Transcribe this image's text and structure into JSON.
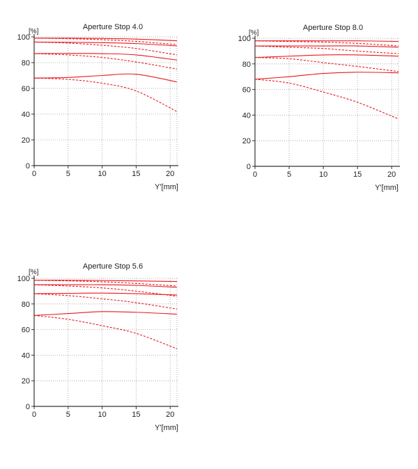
{
  "colors": {
    "curve": "#e8181e",
    "grid": "#9a9a9a",
    "axis": "#333333"
  },
  "chart_data": [
    {
      "type": "line",
      "title": "Aperture Stop 4.0",
      "ylabel": "[%]",
      "xlabel": "Y'[mm]",
      "xlim": [
        0,
        21
      ],
      "ylim": [
        0,
        100
      ],
      "xticks": [
        "0",
        "5",
        "10",
        "15",
        "20"
      ],
      "yticks": [
        "0",
        "20",
        "40",
        "60",
        "80",
        "100"
      ],
      "grid": true,
      "series": [
        {
          "style": "solid",
          "x": [
            0,
            5,
            10,
            15,
            21
          ],
          "y": [
            99,
            99,
            98.8,
            98.3,
            97
          ]
        },
        {
          "style": "dashed",
          "x": [
            0,
            5,
            10,
            15,
            21
          ],
          "y": [
            99,
            98.6,
            97.8,
            96.5,
            94
          ]
        },
        {
          "style": "solid",
          "x": [
            0,
            5,
            10,
            15,
            21
          ],
          "y": [
            96,
            95.8,
            95.5,
            94.8,
            93
          ]
        },
        {
          "style": "dashed",
          "x": [
            0,
            5,
            10,
            15,
            21
          ],
          "y": [
            96,
            95.2,
            93.5,
            91,
            86
          ]
        },
        {
          "style": "solid",
          "x": [
            0,
            5,
            10,
            15,
            21
          ],
          "y": [
            87,
            87.2,
            87,
            86,
            82
          ]
        },
        {
          "style": "dashed",
          "x": [
            0,
            5,
            10,
            15,
            21
          ],
          "y": [
            87,
            86,
            84,
            80.5,
            75
          ]
        },
        {
          "style": "solid",
          "x": [
            0,
            5,
            10,
            15,
            21
          ],
          "y": [
            68,
            68.5,
            70,
            71,
            65
          ]
        },
        {
          "style": "dashed",
          "x": [
            0,
            5,
            10,
            15,
            21
          ],
          "y": [
            68,
            67,
            64,
            58,
            42
          ]
        }
      ]
    },
    {
      "type": "line",
      "title": "Aperture Stop 8.0",
      "ylabel": "[%]",
      "xlabel": "Y'[mm]",
      "xlim": [
        0,
        21
      ],
      "ylim": [
        0,
        100
      ],
      "xticks": [
        "0",
        "5",
        "10",
        "15",
        "20"
      ],
      "yticks": [
        "0",
        "20",
        "40",
        "60",
        "80",
        "100"
      ],
      "grid": true,
      "series": [
        {
          "style": "solid",
          "x": [
            0,
            5,
            10,
            15,
            21
          ],
          "y": [
            98,
            98,
            98,
            98,
            97.5
          ]
        },
        {
          "style": "dashed",
          "x": [
            0,
            5,
            10,
            15,
            21
          ],
          "y": [
            98,
            97.5,
            97,
            96,
            94
          ]
        },
        {
          "style": "solid",
          "x": [
            0,
            5,
            10,
            15,
            21
          ],
          "y": [
            94,
            94,
            94,
            94,
            93
          ]
        },
        {
          "style": "dashed",
          "x": [
            0,
            5,
            10,
            15,
            21
          ],
          "y": [
            94,
            93,
            92,
            90,
            88
          ]
        },
        {
          "style": "solid",
          "x": [
            0,
            5,
            10,
            15,
            21
          ],
          "y": [
            85,
            86,
            87,
            87,
            86
          ]
        },
        {
          "style": "dashed",
          "x": [
            0,
            5,
            10,
            15,
            21
          ],
          "y": [
            85,
            84,
            81,
            78,
            74
          ]
        },
        {
          "style": "solid",
          "x": [
            0,
            5,
            10,
            15,
            21
          ],
          "y": [
            68,
            70,
            72.5,
            73.5,
            73
          ]
        },
        {
          "style": "dashed",
          "x": [
            0,
            5,
            10,
            15,
            21
          ],
          "y": [
            68,
            65,
            58,
            50,
            37
          ]
        }
      ]
    },
    {
      "type": "line",
      "title": "Aperture Stop 5.6",
      "ylabel": "[%]",
      "xlabel": "Y'[mm]",
      "xlim": [
        0,
        21
      ],
      "ylim": [
        0,
        100
      ],
      "xticks": [
        "0",
        "5",
        "10",
        "15",
        "20"
      ],
      "yticks": [
        "0",
        "20",
        "40",
        "60",
        "80",
        "100"
      ],
      "grid": true,
      "series": [
        {
          "style": "solid",
          "x": [
            0,
            5,
            10,
            15,
            21
          ],
          "y": [
            98.5,
            98.5,
            98.3,
            98,
            97.5
          ]
        },
        {
          "style": "dashed",
          "x": [
            0,
            5,
            10,
            15,
            21
          ],
          "y": [
            98.5,
            98,
            97.3,
            96,
            94
          ]
        },
        {
          "style": "solid",
          "x": [
            0,
            5,
            10,
            15,
            21
          ],
          "y": [
            95,
            95,
            95,
            94.5,
            93
          ]
        },
        {
          "style": "dashed",
          "x": [
            0,
            5,
            10,
            15,
            21
          ],
          "y": [
            95,
            94,
            92.5,
            90,
            86
          ]
        },
        {
          "style": "solid",
          "x": [
            0,
            5,
            10,
            15,
            21
          ],
          "y": [
            88,
            88.3,
            88.5,
            88,
            87
          ]
        },
        {
          "style": "dashed",
          "x": [
            0,
            5,
            10,
            15,
            21
          ],
          "y": [
            88,
            86.5,
            84,
            81,
            76
          ]
        },
        {
          "style": "solid",
          "x": [
            0,
            5,
            10,
            15,
            21
          ],
          "y": [
            71,
            72.5,
            74,
            73.5,
            72
          ]
        },
        {
          "style": "dashed",
          "x": [
            0,
            5,
            10,
            15,
            21
          ],
          "y": [
            71,
            68,
            63,
            57,
            45
          ]
        }
      ]
    }
  ]
}
